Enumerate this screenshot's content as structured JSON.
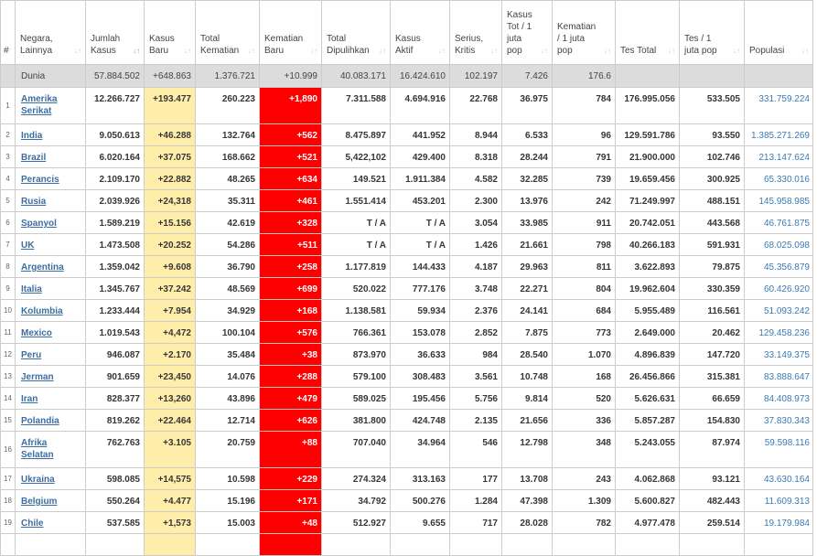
{
  "colors": {
    "new_cases_bg": "#ffeeaa",
    "new_deaths_bg": "#ff0000",
    "world_row_bg": "#dcdcdc",
    "link": "#3a6ea5"
  },
  "headers": [
    {
      "label": "#",
      "sort": false
    },
    {
      "label": "Negara, Lainnya",
      "sort": true
    },
    {
      "label": "Jumlah Kasus",
      "sort": true,
      "active": true
    },
    {
      "label": "Kasus Baru",
      "sort": true
    },
    {
      "label": "Total Kematian",
      "sort": true
    },
    {
      "label": "Kematian Baru",
      "sort": true
    },
    {
      "label": "Total Dipulihkan",
      "sort": true
    },
    {
      "label": "Kasus Aktif",
      "sort": true
    },
    {
      "label": "Serius, Kritis",
      "sort": true
    },
    {
      "label": "Kasus Tot / 1 juta pop",
      "sort": true
    },
    {
      "label": "Kematian / 1 juta pop",
      "sort": true
    },
    {
      "label": "Tes Total",
      "sort": true
    },
    {
      "label": "Tes / 1 juta pop",
      "sort": true
    },
    {
      "label": "Populasi",
      "sort": true
    }
  ],
  "world": [
    "",
    "Dunia",
    "57.884.502",
    "+648.863",
    "1.376.721",
    "+10.999",
    "40.083.171",
    "16.424.610",
    "102.197",
    "7.426",
    "176.6",
    "",
    "",
    ""
  ],
  "rows": [
    [
      "1",
      "Amerika Serikat",
      "12.266.727",
      "+193.477",
      "260.223",
      "+1,890",
      "7.311.588",
      "4.694.916",
      "22.768",
      "36.975",
      "784",
      "176.995.056",
      "533.505",
      "331.759.224"
    ],
    [
      "2",
      "India",
      "9.050.613",
      "+46.288",
      "132.764",
      "+562",
      "8.475.897",
      "441.952",
      "8.944",
      "6.533",
      "96",
      "129.591.786",
      "93.550",
      "1.385.271.269"
    ],
    [
      "3",
      "Brazil",
      "6.020.164",
      "+37.075",
      "168.662",
      "+521",
      "5,422,102",
      "429.400",
      "8.318",
      "28.244",
      "791",
      "21.900.000",
      "102.746",
      "213.147.624"
    ],
    [
      "4",
      "Perancis",
      "2.109.170",
      "+22.882",
      "48.265",
      "+634",
      "149.521",
      "1.911.384",
      "4.582",
      "32.285",
      "739",
      "19.659.456",
      "300.925",
      "65.330.016"
    ],
    [
      "5",
      "Rusia",
      "2.039.926",
      "+24,318",
      "35.311",
      "+461",
      "1.551.414",
      "453.201",
      "2.300",
      "13.976",
      "242",
      "71.249.997",
      "488.151",
      "145.958.985"
    ],
    [
      "6",
      "Spanyol",
      "1.589.219",
      "+15.156",
      "42.619",
      "+328",
      "T / A",
      "T / A",
      "3.054",
      "33.985",
      "911",
      "20.742.051",
      "443.568",
      "46.761.875"
    ],
    [
      "7",
      "UK",
      "1.473.508",
      "+20.252",
      "54.286",
      "+511",
      "T / A",
      "T / A",
      "1.426",
      "21.661",
      "798",
      "40.266.183",
      "591.931",
      "68.025.098"
    ],
    [
      "8",
      "Argentina",
      "1.359.042",
      "+9.608",
      "36.790",
      "+258",
      "1.177.819",
      "144.433",
      "4.187",
      "29.963",
      "811",
      "3.622.893",
      "79.875",
      "45.356.879"
    ],
    [
      "9",
      "Italia",
      "1.345.767",
      "+37.242",
      "48.569",
      "+699",
      "520.022",
      "777.176",
      "3.748",
      "22.271",
      "804",
      "19.962.604",
      "330.359",
      "60.426.920"
    ],
    [
      "10",
      "Kolumbia",
      "1.233.444",
      "+7.954",
      "34.929",
      "+168",
      "1.138.581",
      "59.934",
      "2.376",
      "24.141",
      "684",
      "5.955.489",
      "116.561",
      "51.093.242"
    ],
    [
      "11",
      "Mexico",
      "1.019.543",
      "+4,472",
      "100.104",
      "+576",
      "766.361",
      "153.078",
      "2.852",
      "7.875",
      "773",
      "2.649.000",
      "20.462",
      "129.458.236"
    ],
    [
      "12",
      "Peru",
      "946.087",
      "+2.170",
      "35.484",
      "+38",
      "873.970",
      "36.633",
      "984",
      "28.540",
      "1.070",
      "4.896.839",
      "147.720",
      "33.149.375"
    ],
    [
      "13",
      "Jerman",
      "901.659",
      "+23,450",
      "14.076",
      "+288",
      "579.100",
      "308.483",
      "3.561",
      "10.748",
      "168",
      "26.456.866",
      "315.381",
      "83.888.647"
    ],
    [
      "14",
      "Iran",
      "828.377",
      "+13,260",
      "43.896",
      "+479",
      "589.025",
      "195.456",
      "5.756",
      "9.814",
      "520",
      "5.626.631",
      "66.659",
      "84.408.973"
    ],
    [
      "15",
      "Polandia",
      "819.262",
      "+22.464",
      "12.714",
      "+626",
      "381.800",
      "424.748",
      "2.135",
      "21.656",
      "336",
      "5.857.287",
      "154.830",
      "37.830.343"
    ],
    [
      "16",
      "Afrika Selatan",
      "762.763",
      "+3.105",
      "20.759",
      "+88",
      "707.040",
      "34.964",
      "546",
      "12.798",
      "348",
      "5.243.055",
      "87.974",
      "59.598.116"
    ],
    [
      "17",
      "Ukraina",
      "598.085",
      "+14,575",
      "10.598",
      "+229",
      "274.324",
      "313.163",
      "177",
      "13.708",
      "243",
      "4.062.868",
      "93.121",
      "43.630.164"
    ],
    [
      "18",
      "Belgium",
      "550.264",
      "+4.477",
      "15.196",
      "+171",
      "34.792",
      "500.276",
      "1.284",
      "47.398",
      "1.309",
      "5.600.827",
      "482.443",
      "11.609.313"
    ],
    [
      "19",
      "Chile",
      "537.585",
      "+1,573",
      "15.003",
      "+48",
      "512.927",
      "9.655",
      "717",
      "28.028",
      "782",
      "4.977.478",
      "259.514",
      "19.179.984"
    ],
    [
      "",
      "",
      "",
      "",
      "",
      "",
      "",
      "",
      "",
      "",
      "",
      "",
      "",
      ""
    ]
  ]
}
